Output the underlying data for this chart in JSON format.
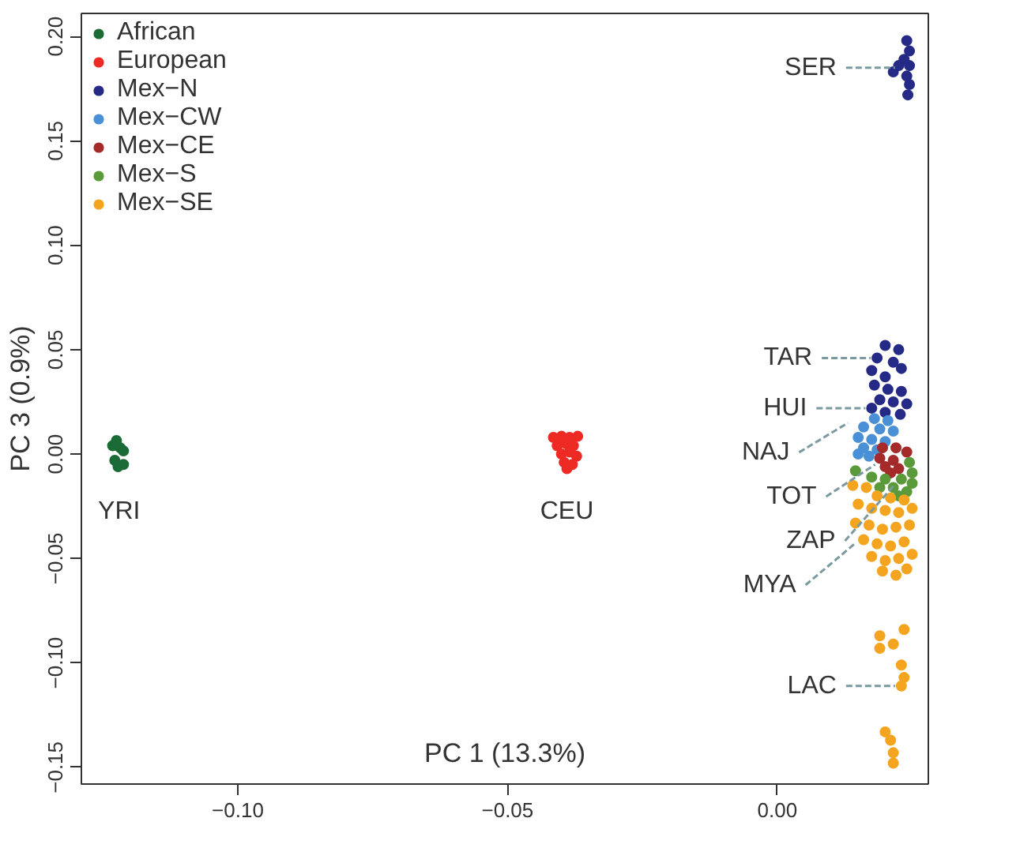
{
  "chart_data": {
    "type": "scatter",
    "xlabel": "PC 1 (13.3%)",
    "ylabel": "PC 3 (0.9%)",
    "xlim": [
      -0.129,
      0.028
    ],
    "ylim": [
      -0.158,
      0.211
    ],
    "xticks": [
      {
        "value": -0.1,
        "label": "−0.10"
      },
      {
        "value": -0.05,
        "label": "−0.05"
      },
      {
        "value": 0,
        "label": "0.00"
      }
    ],
    "yticks": [
      {
        "value": -0.15,
        "label": "−0.15"
      },
      {
        "value": -0.1,
        "label": "−0.10"
      },
      {
        "value": -0.05,
        "label": "−0.05"
      },
      {
        "value": 0,
        "label": "0.00"
      },
      {
        "value": 0.05,
        "label": "0.05"
      },
      {
        "value": 0.1,
        "label": "0.10"
      },
      {
        "value": 0.15,
        "label": "0.15"
      },
      {
        "value": 0.2,
        "label": "0.20"
      }
    ],
    "grid": false,
    "legend": "top left",
    "marker": "circle",
    "series": [
      {
        "name": "African",
        "color": "#1a6b35",
        "x": [
          -0.1225,
          -0.1232,
          -0.1218,
          -0.1212,
          -0.1212,
          -0.1222,
          -0.1228
        ],
        "values": [
          0.0065,
          0.004,
          0.003,
          0.0015,
          -0.005,
          -0.006,
          -0.003
        ]
      },
      {
        "name": "European",
        "color": "#ee2a24",
        "x": [
          -0.0415,
          -0.04,
          -0.0385,
          -0.037,
          -0.0408,
          -0.0392,
          -0.0378,
          -0.04,
          -0.0385,
          -0.0372,
          -0.0395,
          -0.038,
          -0.039
        ],
        "values": [
          0.008,
          0.0085,
          0.008,
          0.0085,
          0.004,
          0.005,
          0.004,
          0.0,
          0.001,
          -0.001,
          -0.004,
          -0.005,
          -0.007
        ]
      },
      {
        "name": "Mex−N",
        "color": "#252a86",
        "x": [
          0.024,
          0.0245,
          0.0235,
          0.0225,
          0.0245,
          0.0215,
          0.024,
          0.0245,
          0.0242,
          0.02,
          0.0225,
          0.0185,
          0.0215,
          0.0175,
          0.02,
          0.023,
          0.018,
          0.0205,
          0.023,
          0.019,
          0.0215,
          0.024,
          0.0175,
          0.02,
          0.0228
        ],
        "values": [
          0.198,
          0.193,
          0.189,
          0.186,
          0.186,
          0.183,
          0.181,
          0.177,
          0.172,
          0.052,
          0.05,
          0.046,
          0.044,
          0.04,
          0.037,
          0.041,
          0.033,
          0.031,
          0.03,
          0.026,
          0.025,
          0.024,
          0.022,
          0.02,
          0.019
        ]
      },
      {
        "name": "Mex−CW",
        "color": "#4a90d6",
        "x": [
          0.018,
          0.0205,
          0.016,
          0.019,
          0.0215,
          0.015,
          0.0175,
          0.02,
          0.016,
          0.0185,
          0.015,
          0.017
        ],
        "values": [
          0.017,
          0.016,
          0.013,
          0.012,
          0.011,
          0.008,
          0.007,
          0.006,
          0.003,
          0.002,
          0.0,
          -0.001
        ]
      },
      {
        "name": "Mex−CE",
        "color": "#a52a2a",
        "x": [
          0.0195,
          0.022,
          0.024,
          0.019,
          0.0215,
          0.02,
          0.0225,
          0.021
        ],
        "values": [
          0.003,
          0.003,
          0.001,
          -0.002,
          -0.003,
          -0.006,
          -0.007,
          -0.009
        ]
      },
      {
        "name": "Mex−S",
        "color": "#5a9a3a",
        "x": [
          0.0145,
          0.0245,
          0.025,
          0.0175,
          0.02,
          0.023,
          0.025,
          0.019,
          0.0215,
          0.024,
          0.0225
        ],
        "values": [
          -0.008,
          -0.004,
          -0.009,
          -0.011,
          -0.012,
          -0.012,
          -0.014,
          -0.016,
          -0.016,
          -0.018,
          -0.02
        ]
      },
      {
        "name": "Mex−SE",
        "color": "#f4a41f",
        "x": [
          0.014,
          0.0165,
          0.0185,
          0.021,
          0.0235,
          0.015,
          0.0175,
          0.02,
          0.0225,
          0.025,
          0.0145,
          0.017,
          0.0195,
          0.022,
          0.0245,
          0.016,
          0.0185,
          0.021,
          0.0235,
          0.0175,
          0.02,
          0.0225,
          0.025,
          0.0195,
          0.022,
          0.024,
          0.019,
          0.0235,
          0.019,
          0.0215,
          0.023,
          0.0235,
          0.023,
          0.02,
          0.021,
          0.0215,
          0.0215
        ],
        "values": [
          -0.015,
          -0.016,
          -0.02,
          -0.021,
          -0.022,
          -0.024,
          -0.026,
          -0.027,
          -0.028,
          -0.026,
          -0.033,
          -0.034,
          -0.036,
          -0.035,
          -0.034,
          -0.041,
          -0.043,
          -0.044,
          -0.042,
          -0.049,
          -0.051,
          -0.05,
          -0.048,
          -0.056,
          -0.058,
          -0.055,
          -0.087,
          -0.084,
          -0.093,
          -0.091,
          -0.101,
          -0.107,
          -0.111,
          -0.133,
          -0.137,
          -0.143,
          -0.148
        ]
      }
    ],
    "annotations": [
      {
        "text": "YRI",
        "x": -0.122,
        "y": 0.0
      },
      {
        "text": "CEU",
        "x": -0.039,
        "y": 0.0
      },
      {
        "text": "SER",
        "x": 0.023,
        "y": 0.185
      },
      {
        "text": "TAR",
        "x": 0.0185,
        "y": 0.046
      },
      {
        "text": "HUI",
        "x": 0.0175,
        "y": 0.022
      },
      {
        "text": "NAJ",
        "x": 0.0143,
        "y": 0.015
      },
      {
        "text": "TOT",
        "x": 0.0193,
        "y": -0.005
      },
      {
        "text": "ZAP",
        "x": 0.0228,
        "y": -0.015
      },
      {
        "text": "MYA",
        "x": 0.0155,
        "y": -0.043
      },
      {
        "text": "LAC",
        "x": 0.023,
        "y": -0.111
      }
    ]
  }
}
